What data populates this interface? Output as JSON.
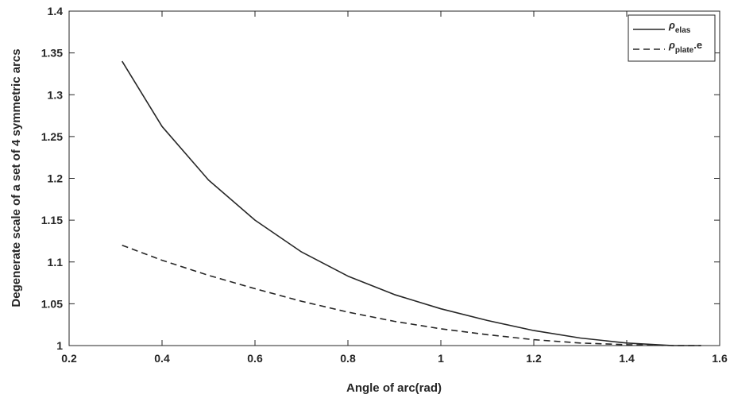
{
  "chart_data": {
    "type": "line",
    "xlabel": "Angle of arc(rad)",
    "ylabel": "Degenerate scale of a set of 4 symmetric arcs",
    "xlim": [
      0.2,
      1.6
    ],
    "ylim": [
      1,
      1.4
    ],
    "x_ticks": [
      "0.2",
      "0.4",
      "0.6",
      "0.8",
      "1",
      "1.2",
      "1.4",
      "1.6"
    ],
    "y_ticks": [
      "1",
      "1.05",
      "1.1",
      "1.15",
      "1.2",
      "1.25",
      "1.3",
      "1.35",
      "1.4"
    ],
    "grid": false,
    "legend_position": "top-right",
    "x": [
      0.314,
      0.4,
      0.5,
      0.6,
      0.7,
      0.8,
      0.9,
      1.0,
      1.1,
      1.2,
      1.3,
      1.4,
      1.5,
      1.56
    ],
    "series": [
      {
        "legend_symbol": "ρ",
        "legend_subscript": "elas",
        "legend_suffix": "",
        "style": "solid",
        "color": "#262626",
        "values": [
          1.34,
          1.262,
          1.198,
          1.15,
          1.112,
          1.083,
          1.061,
          1.044,
          1.03,
          1.018,
          1.009,
          1.003,
          1.0,
          1.0
        ]
      },
      {
        "legend_symbol": "ρ",
        "legend_subscript": "plate",
        "legend_suffix": ".e",
        "style": "dashed",
        "color": "#262626",
        "values": [
          1.12,
          1.102,
          1.084,
          1.068,
          1.053,
          1.04,
          1.029,
          1.02,
          1.013,
          1.007,
          1.003,
          1.001,
          1.0,
          1.0
        ]
      }
    ]
  }
}
